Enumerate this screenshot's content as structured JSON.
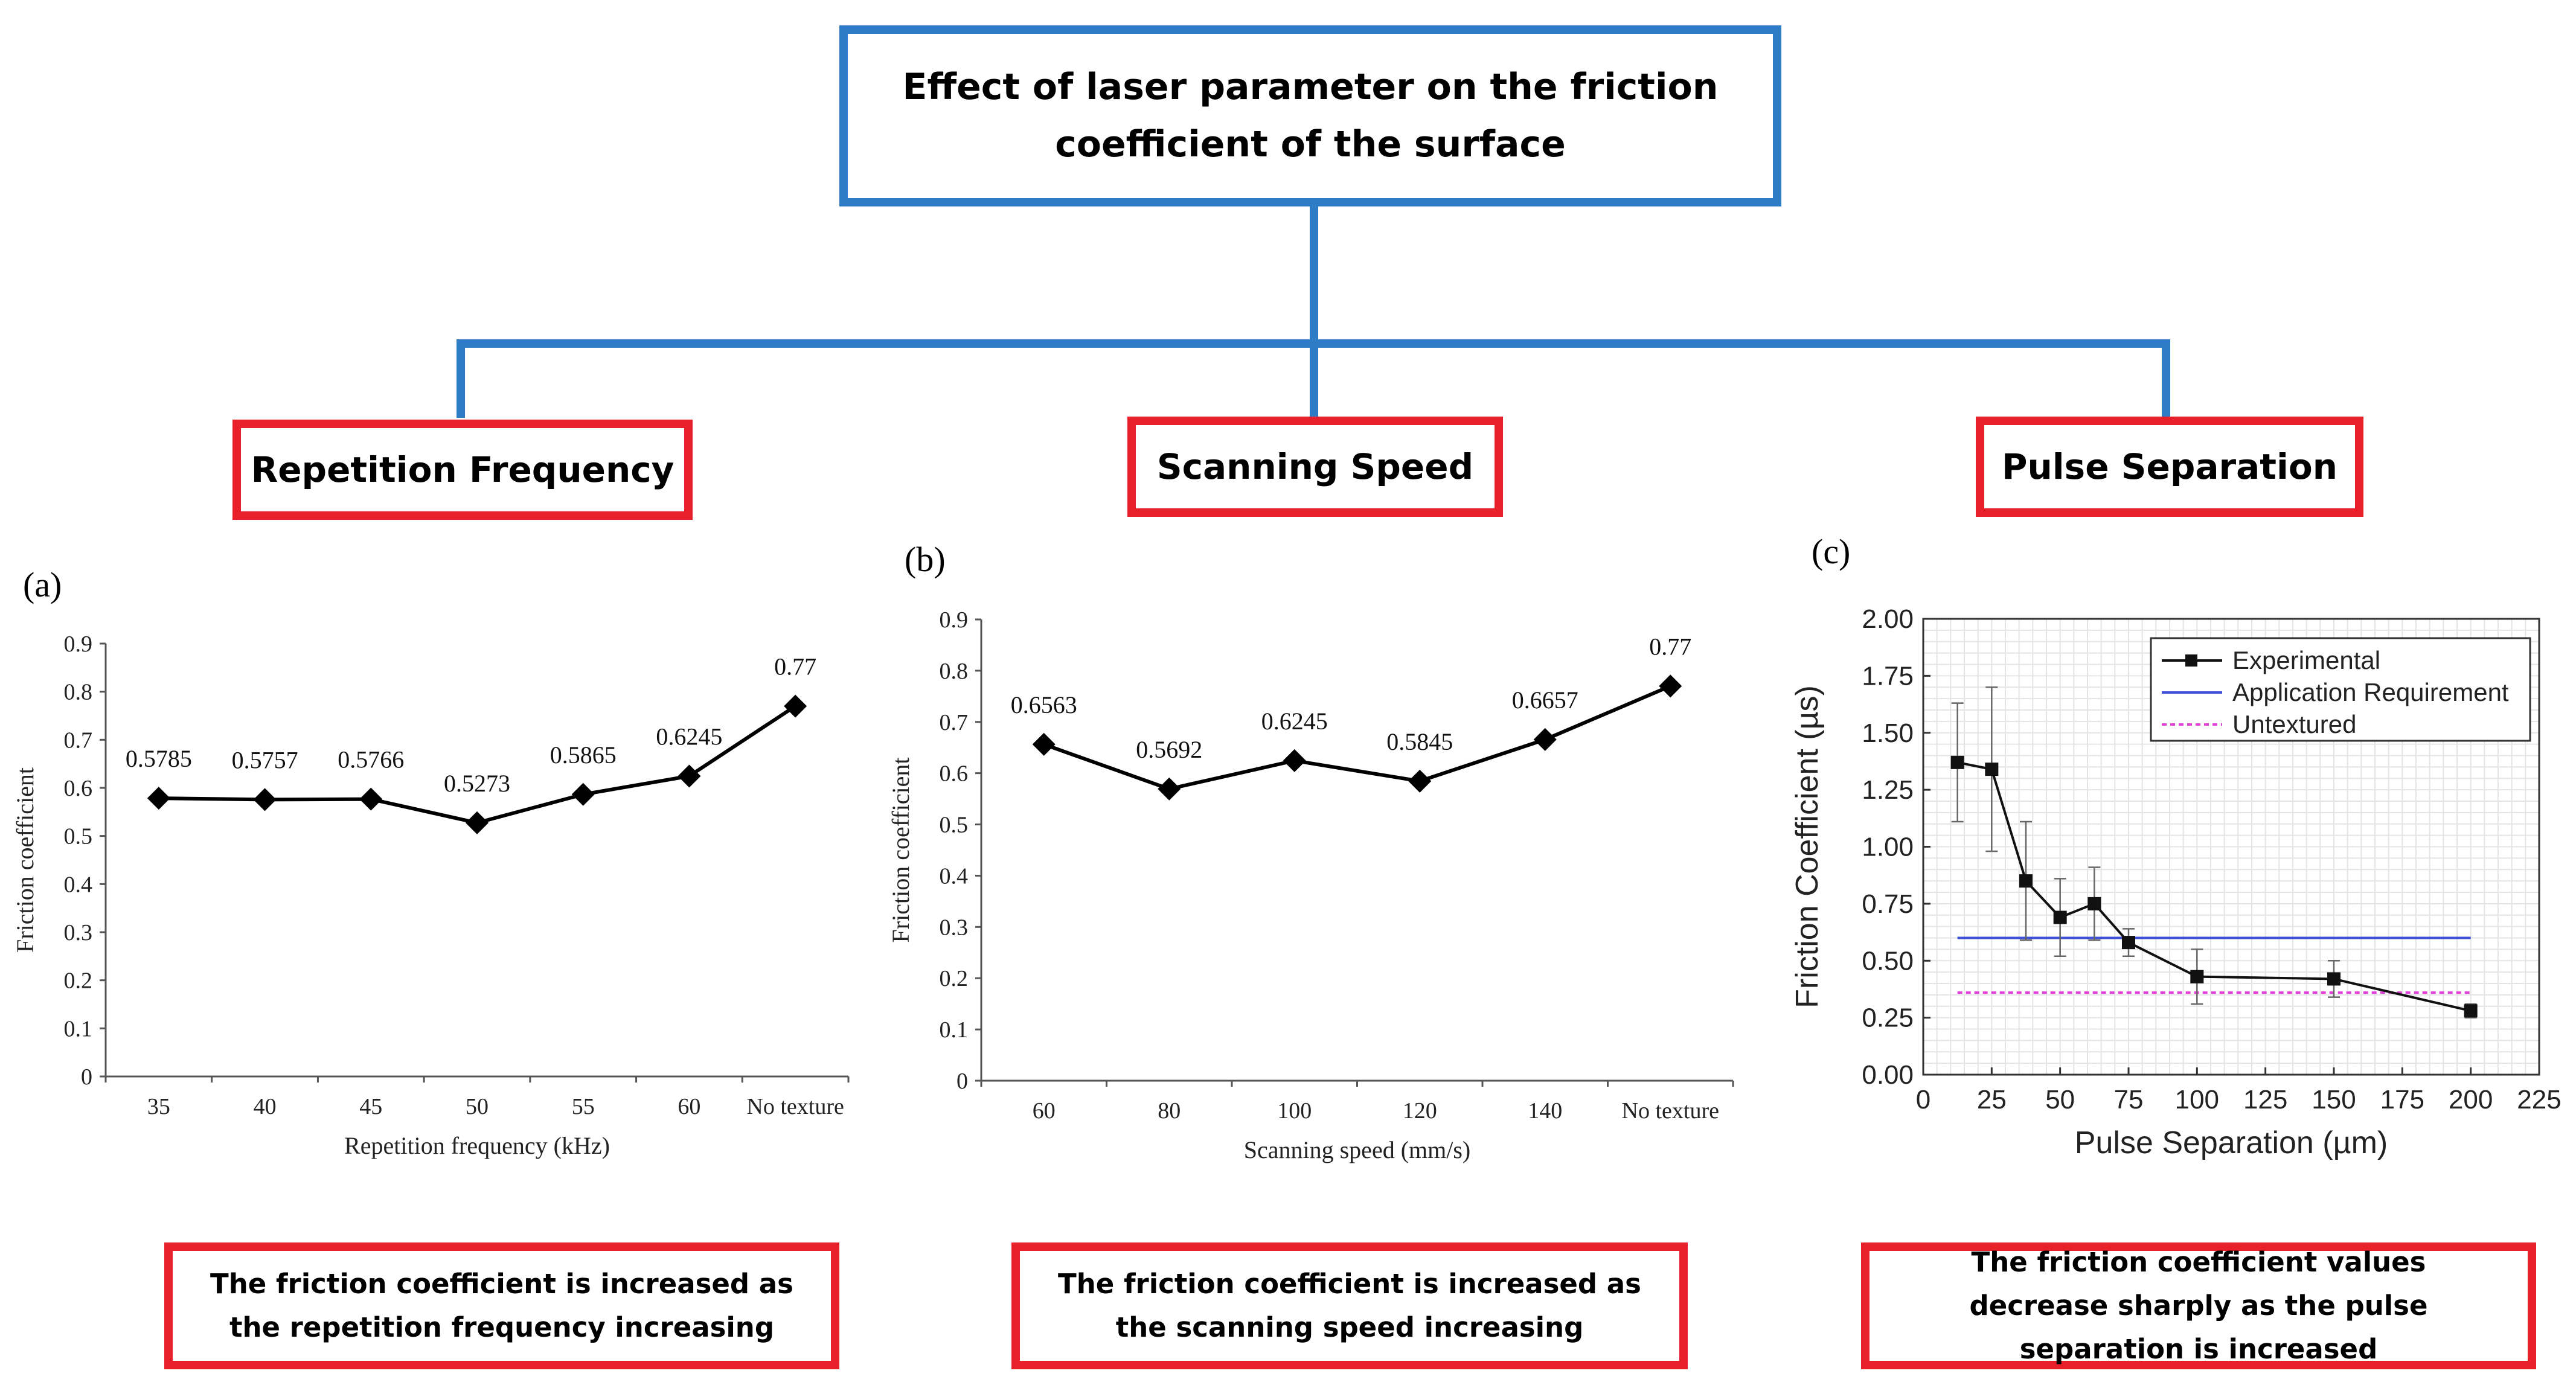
{
  "title": "Effect of laser parameter on the friction coefficient of the surface",
  "categories": [
    "Repetition Frequency",
    "Scanning Speed",
    "Pulse Separation"
  ],
  "panel_labels": [
    "(a)",
    "(b)",
    "(c)"
  ],
  "conclusions": [
    "The friction coefficient is increased as the repetition frequency increasing",
    "The friction coefficient is increased as the scanning speed increasing",
    "The friction coefficient values decrease sharply as the pulse separation is increased"
  ],
  "colors": {
    "connector": "#2E7BC6",
    "box_border": "#E8202A",
    "requirement_line": "#3F51D9",
    "untextured_line": "#E040D8"
  },
  "chart_data": [
    {
      "type": "line",
      "panel": "(a)",
      "categories": [
        "35",
        "40",
        "45",
        "50",
        "55",
        "60",
        "No texture"
      ],
      "values": [
        0.5785,
        0.5757,
        0.5766,
        0.5273,
        0.5865,
        0.6245,
        0.77
      ],
      "data_labels": [
        "0.5785",
        "0.5757",
        "0.5766",
        "0.5273",
        "0.5865",
        "0.6245",
        "0.77"
      ],
      "xlabel": "Repetition frequency  (kHz)",
      "ylabel": "Friction coefficient",
      "ylim": [
        0,
        0.9
      ],
      "yticks": [
        "0",
        "0.1",
        "0.2",
        "0.3",
        "0.4",
        "0.5",
        "0.6",
        "0.7",
        "0.8",
        "0.9"
      ],
      "marker": "diamond",
      "grid": false
    },
    {
      "type": "line",
      "panel": "(b)",
      "categories": [
        "60",
        "80",
        "100",
        "120",
        "140",
        "No texture"
      ],
      "values": [
        0.6563,
        0.5692,
        0.6245,
        0.5845,
        0.6657,
        0.77
      ],
      "data_labels": [
        "0.6563",
        "0.5692",
        "0.6245",
        "0.5845",
        "0.6657",
        "0.77"
      ],
      "xlabel": "Scanning speed  (mm/s)",
      "ylabel": "Friction coefficient",
      "ylim": [
        0,
        0.9
      ],
      "yticks": [
        "0",
        "0.1",
        "0.2",
        "0.3",
        "0.4",
        "0.5",
        "0.6",
        "0.7",
        "0.8",
        "0.9"
      ],
      "marker": "diamond",
      "grid": false
    },
    {
      "type": "line",
      "panel": "(c)",
      "xlabel": "Pulse Separation (µm)",
      "ylabel": "Friction Coefficient (µs)",
      "xlim": [
        0,
        225
      ],
      "ylim": [
        0,
        2.0
      ],
      "xticks": [
        "0",
        "25",
        "50",
        "75",
        "100",
        "125",
        "150",
        "175",
        "200",
        "225"
      ],
      "yticks": [
        "0.00",
        "0.25",
        "0.50",
        "0.75",
        "1.00",
        "1.25",
        "1.50",
        "1.75",
        "2.00"
      ],
      "grid": true,
      "legend_position": "top-right",
      "series": [
        {
          "name": "Experimental",
          "marker": "square",
          "x": [
            12.5,
            25,
            37.5,
            50,
            62.5,
            75,
            100,
            150,
            200
          ],
          "y": [
            1.37,
            1.34,
            0.85,
            0.69,
            0.75,
            0.58,
            0.43,
            0.42,
            0.28
          ],
          "error": [
            0.26,
            0.36,
            0.26,
            0.17,
            0.16,
            0.06,
            0.12,
            0.08,
            0.03
          ]
        },
        {
          "name": "Application Requirement",
          "x": [
            12.5,
            200
          ],
          "y": [
            0.6,
            0.6
          ]
        },
        {
          "name": "Untextured",
          "x": [
            12.5,
            200
          ],
          "y": [
            0.36,
            0.36
          ]
        }
      ]
    }
  ]
}
